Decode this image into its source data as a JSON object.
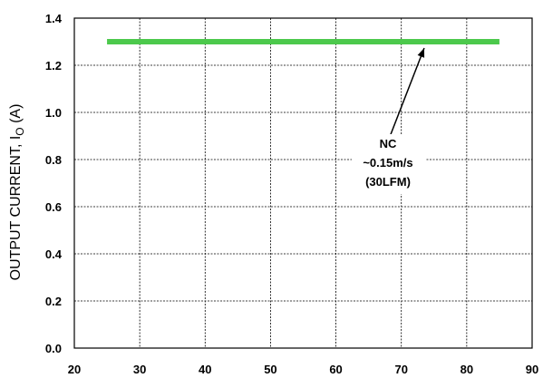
{
  "chart_data": {
    "type": "line",
    "title": "",
    "xlabel": "",
    "ylabel": "OUTPUT CURRENT, I",
    "ylabel_sub": "O",
    "ylabel_unit": " (A)",
    "xlim": [
      20,
      90
    ],
    "ylim": [
      0.0,
      1.4
    ],
    "x_ticks": [
      "20",
      "30",
      "40",
      "50",
      "60",
      "70",
      "80",
      "90"
    ],
    "y_ticks": [
      "0.0",
      "0.2",
      "0.4",
      "0.6",
      "0.8",
      "1.0",
      "1.2",
      "1.4"
    ],
    "grid": true,
    "series": [
      {
        "color": "#4cc94c",
        "x": [
          25,
          85
        ],
        "y": [
          1.3,
          1.3
        ]
      }
    ],
    "annotation": {
      "lines": [
        "NC",
        "~0.15m/s",
        "(30LFM)"
      ],
      "points_to": {
        "x": 73.5,
        "y": 1.3
      }
    }
  }
}
